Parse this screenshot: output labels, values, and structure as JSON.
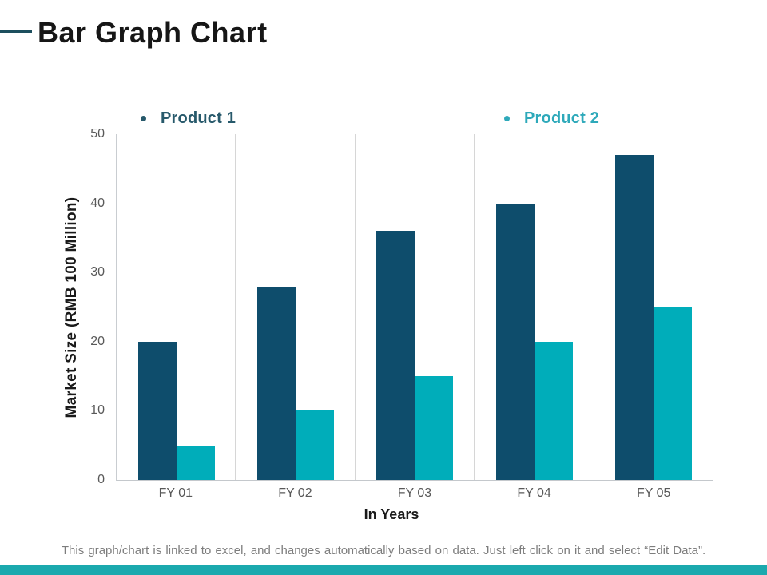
{
  "slide": {
    "title": "Bar Graph Chart",
    "footer": "This graph/chart is linked to excel, and changes automatically based on data. Just left click on it and select “Edit Data”.",
    "accent_stripe_color": "#1BA9AE",
    "title_dash_color": "#1D4F5E"
  },
  "legend": {
    "items": [
      {
        "label": "Product 1",
        "color": "#27596B"
      },
      {
        "label": "Product 2",
        "color": "#2EA9BA"
      }
    ]
  },
  "chart_data": {
    "type": "bar",
    "categories": [
      "FY 01",
      "FY 02",
      "FY 03",
      "FY 04",
      "FY 05"
    ],
    "series": [
      {
        "name": "Product 1",
        "color": "#0E4D6C",
        "values": [
          20,
          28,
          36,
          40,
          47
        ]
      },
      {
        "name": "Product 2",
        "color": "#00ADBA",
        "values": [
          5,
          10,
          15,
          20,
          25
        ]
      }
    ],
    "title": "Bar Graph Chart",
    "xlabel": "In Years",
    "ylabel": "Market Size (RMB 100 Million)",
    "ylim": [
      0,
      50
    ],
    "yticks": [
      0,
      10,
      20,
      30,
      40,
      50
    ],
    "grid": "vertical category separators only",
    "legend_position": "top"
  }
}
